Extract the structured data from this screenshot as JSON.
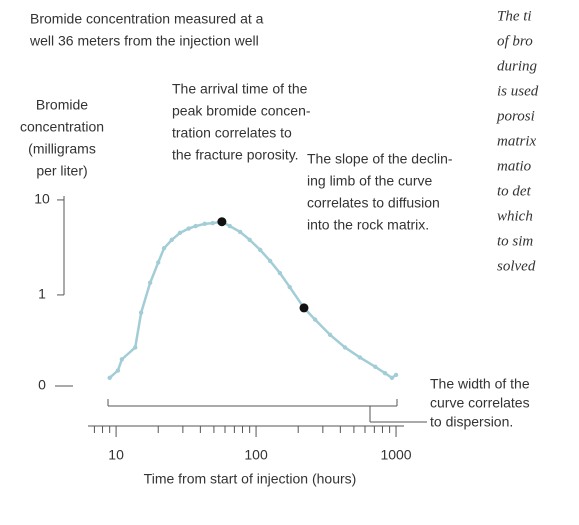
{
  "chart_data": {
    "type": "line",
    "title": [
      "Bromide concentration measured at a",
      "well 36 meters from the injection well"
    ],
    "y_label": [
      "Bromide",
      "concentration",
      "(milligrams",
      "per liter)"
    ],
    "x_label": "Time from start of injection (hours)",
    "x": [
      9,
      10.3,
      11,
      13.7,
      15.1,
      17.5,
      20,
      22,
      25,
      28.6,
      33,
      37,
      43,
      49,
      57,
      65,
      77,
      90,
      107,
      126,
      148,
      174,
      220,
      264,
      338,
      432,
      552,
      711,
      835,
      935,
      1000
    ],
    "series": [
      {
        "name": "Bromide concentration",
        "color": "#a3cdd6",
        "values": [
          0.134,
          0.16,
          0.21,
          0.28,
          0.65,
          1.34,
          2.2,
          3.1,
          3.8,
          4.5,
          5.0,
          5.3,
          5.6,
          5.7,
          5.9,
          5.3,
          4.6,
          3.8,
          2.98,
          2.28,
          1.7,
          1.21,
          0.73,
          0.55,
          0.38,
          0.28,
          0.22,
          0.175,
          0.15,
          0.134,
          0.144
        ]
      }
    ],
    "xscale": "log",
    "yscale": "log",
    "xlim": [
      6.3,
      1140
    ],
    "xticks": [
      10,
      100,
      1000
    ],
    "xminorticks": [
      7,
      8,
      9,
      20,
      30,
      40,
      50,
      60,
      70,
      80,
      90,
      200,
      300,
      400,
      500,
      600,
      700,
      800,
      900
    ],
    "ylim": [
      0.11,
      11
    ],
    "yticks": [
      {
        "value": 0.11,
        "label": "0"
      },
      1,
      10
    ],
    "annotations": [
      [
        "The arrival time of the",
        "peak bromide concen-",
        "tration correlates to",
        "the fracture porosity."
      ],
      [
        "The slope of the declin-",
        "ing limb of the curve",
        "correlates to diffusion",
        "into the rock matrix."
      ],
      [
        "The width of the",
        "curve correlates",
        "to dispersion."
      ]
    ],
    "side_text": [
      "The ti",
      "of bro",
      "during",
      "is used",
      "porosi",
      "matrix",
      "matio",
      "to det",
      "which",
      "to sim",
      "solved"
    ]
  }
}
